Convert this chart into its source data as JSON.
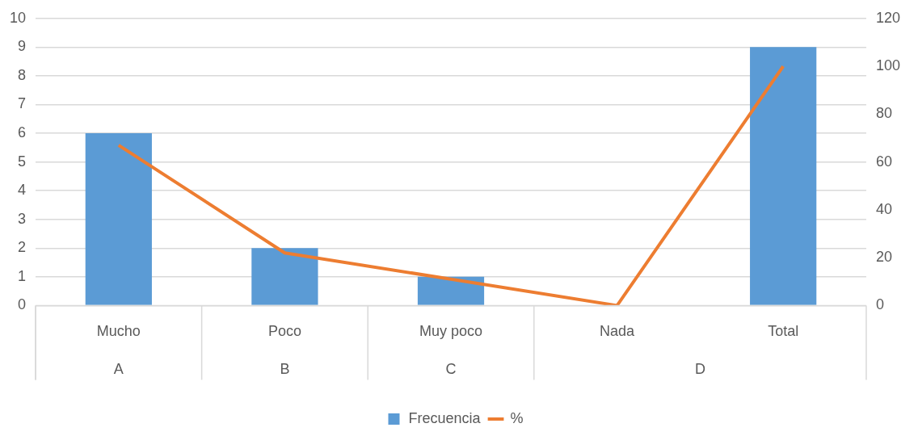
{
  "chart_data": {
    "type": "bar",
    "categories": [
      "Mucho",
      "Poco",
      "Muy poco",
      "Nada",
      "Total"
    ],
    "series": [
      {
        "name": "Frecuencia",
        "color": "#5b9bd5",
        "values": [
          6,
          2,
          1,
          0,
          9
        ]
      },
      {
        "name": "%",
        "type": "line",
        "axis": "y2",
        "color": "#ed7d31",
        "values": [
          67,
          22,
          11,
          0,
          100
        ]
      }
    ],
    "ylim": [
      0,
      10
    ],
    "yticks": [
      0,
      1,
      2,
      3,
      4,
      5,
      6,
      7,
      8,
      9,
      10
    ],
    "y2lim": [
      0,
      120
    ],
    "y2ticks": [
      0,
      20,
      40,
      60,
      80,
      100,
      120
    ],
    "annotations": [
      "A",
      "B",
      "C",
      "D"
    ],
    "grid": "y",
    "legend": "bottom",
    "marker": "none",
    "line_style": "solid"
  }
}
